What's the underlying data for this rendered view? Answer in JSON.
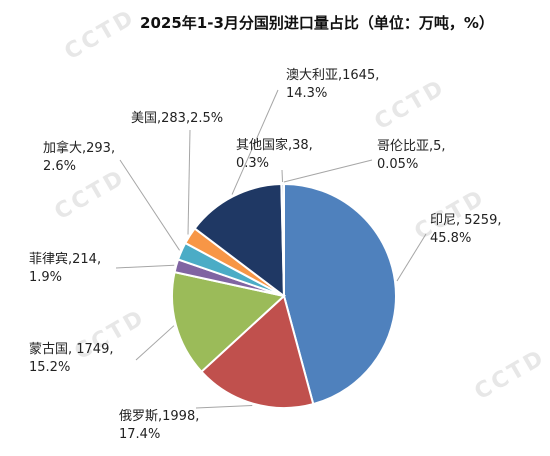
{
  "chart_data": {
    "type": "pie",
    "title": "2025年1-3月分国别进口量占比（单位：万吨，%）",
    "watermark": "CCTD",
    "slices": [
      {
        "name": "印尼",
        "value": 5259,
        "percent": "45.8%",
        "label_line1": "印尼, 5259,",
        "label_line2": "45.8%",
        "color": "#4f81bd"
      },
      {
        "name": "俄罗斯",
        "value": 1998,
        "percent": "17.4%",
        "label_line1": "俄罗斯,1998,",
        "label_line2": "17.4%",
        "color": "#c0504d"
      },
      {
        "name": "蒙古国",
        "value": 1749,
        "percent": "15.2%",
        "label_line1": "蒙古国, 1749,",
        "label_line2": "15.2%",
        "color": "#9bbb59"
      },
      {
        "name": "菲律宾",
        "value": 214,
        "percent": "1.9%",
        "label_line1": "菲律宾,214,",
        "label_line2": "1.9%",
        "color": "#8064a2"
      },
      {
        "name": "加拿大",
        "value": 293,
        "percent": "2.6%",
        "label_line1": "加拿大,293,",
        "label_line2": "2.6%",
        "color": "#4bacc6"
      },
      {
        "name": "美国",
        "value": 283,
        "percent": "2.5%",
        "label_line1": "美国,283,2.5%",
        "label_line2": "",
        "color": "#f79646"
      },
      {
        "name": "澳大利亚",
        "value": 1645,
        "percent": "14.3%",
        "label_line1": "澳大利亚,1645,",
        "label_line2": "14.3%",
        "color": "#1f3864"
      },
      {
        "name": "其他国家",
        "value": 38,
        "percent": "0.3%",
        "label_line1": "其他国家,38,",
        "label_line2": "0.3%",
        "color": "#4a6fa5"
      },
      {
        "name": "哥伦比亚",
        "value": 5,
        "percent": "0.05%",
        "label_line1": "哥伦比亚,5,",
        "label_line2": "0.05%",
        "color": "#c0504d"
      }
    ]
  }
}
